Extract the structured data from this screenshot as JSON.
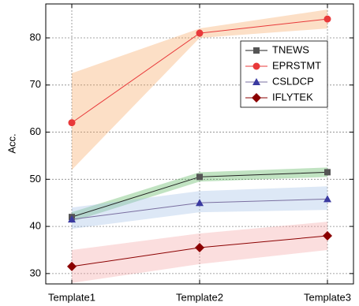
{
  "chart_data": {
    "type": "line",
    "y_label": "Acc.",
    "categories": [
      "Template1",
      "Template2",
      "Template3"
    ],
    "ylim": [
      27.8,
      87.2
    ],
    "yticks": [
      30,
      40,
      50,
      60,
      70,
      80
    ],
    "grid": true,
    "legend": "upper right",
    "series": [
      {
        "name": "TNEWS",
        "color": "#222222",
        "marker_color": "#555555",
        "marker": "square",
        "band_color": "#4caf50",
        "values": [
          42,
          50.5,
          51.5
        ],
        "lower": [
          41,
          49.5,
          50.5
        ],
        "upper": [
          43,
          51.5,
          52.5
        ]
      },
      {
        "name": "EPRSTMT",
        "color": "#e8393a",
        "marker_color": "#e8393a",
        "marker": "circle",
        "band_color": "#f7a35c",
        "values": [
          62,
          81,
          84
        ],
        "lower": [
          52,
          80,
          82
        ],
        "upper": [
          72.5,
          82,
          86
        ]
      },
      {
        "name": "CSLDCP",
        "color": "#7a6fa0",
        "marker_color": "#3a3aa0",
        "marker": "triangle",
        "band_color": "#9dbde6",
        "values": [
          41.5,
          45,
          45.8
        ],
        "lower": [
          39.5,
          43,
          43.5
        ],
        "upper": [
          44,
          47.5,
          48.5
        ]
      },
      {
        "name": "IFLYTEK",
        "color": "#8b0000",
        "marker_color": "#8b0000",
        "marker": "diamond",
        "band_color": "#f4a0a0",
        "values": [
          31.5,
          35.5,
          38
        ],
        "lower": [
          28,
          32,
          35
        ],
        "upper": [
          35,
          38.5,
          41
        ]
      }
    ]
  }
}
